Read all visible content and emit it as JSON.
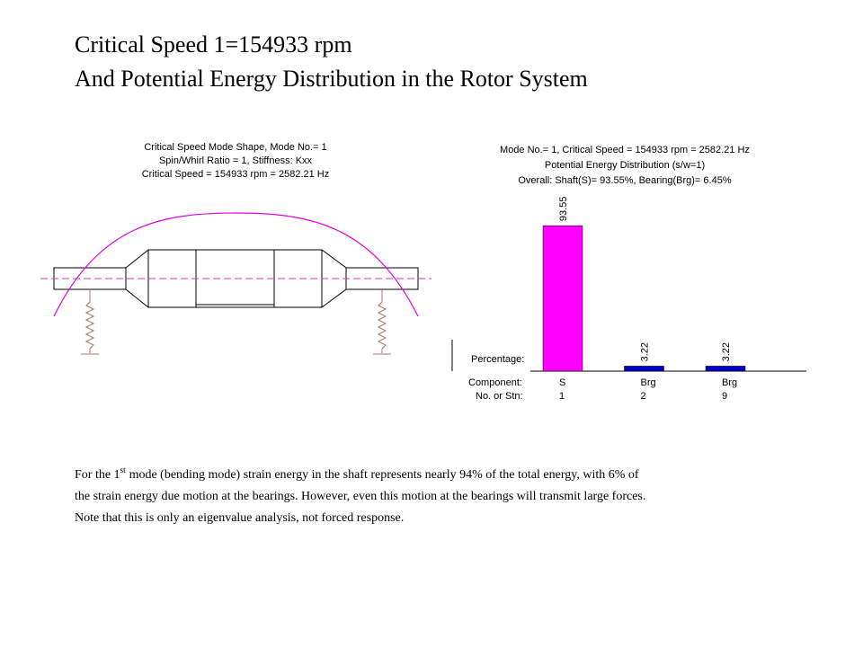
{
  "title": [
    "Critical Speed 1=154933 rpm",
    "And Potential Energy Distribution in the Rotor System"
  ],
  "mode_shape": {
    "title": [
      "Critical Speed Mode Shape, Mode No.= 1",
      "Spin/Whirl Ratio = 1, Stiffness: Kxx",
      "Critical Speed = 154933 rpm = 2582.21 Hz"
    ]
  },
  "chart_data": {
    "type": "bar",
    "title": [
      "Mode No.= 1, Critical Speed = 154933 rpm = 2582.21 Hz",
      "Potential Energy Distribution (s/w=1)",
      "Overall: Shaft(S)= 93.55%, Bearing(Brg)= 6.45%"
    ],
    "y_label": "Percentage:",
    "row_labels": [
      "Component:",
      "No. or Stn:"
    ],
    "categories": [
      "S",
      "Brg",
      "Brg"
    ],
    "stations": [
      "1",
      "2",
      "9"
    ],
    "values": [
      93.55,
      3.22,
      3.22
    ],
    "colors": [
      "#ff00ff",
      "#0000cc",
      "#0000cc"
    ],
    "ylim": [
      0,
      100
    ]
  },
  "paragraph": {
    "line1_start": "For the 1",
    "line1_sup": "st",
    "line1_end": "mode (bending mode) strain energy in the shaft represents nearly 94% of the total energy, with 6% of",
    "line2": "the strain energy due motion at the bearings. However, even this motion at the bearings will transmit large forces.",
    "line3": "Note that this is only an eigenvalue analysis, not forced response."
  }
}
